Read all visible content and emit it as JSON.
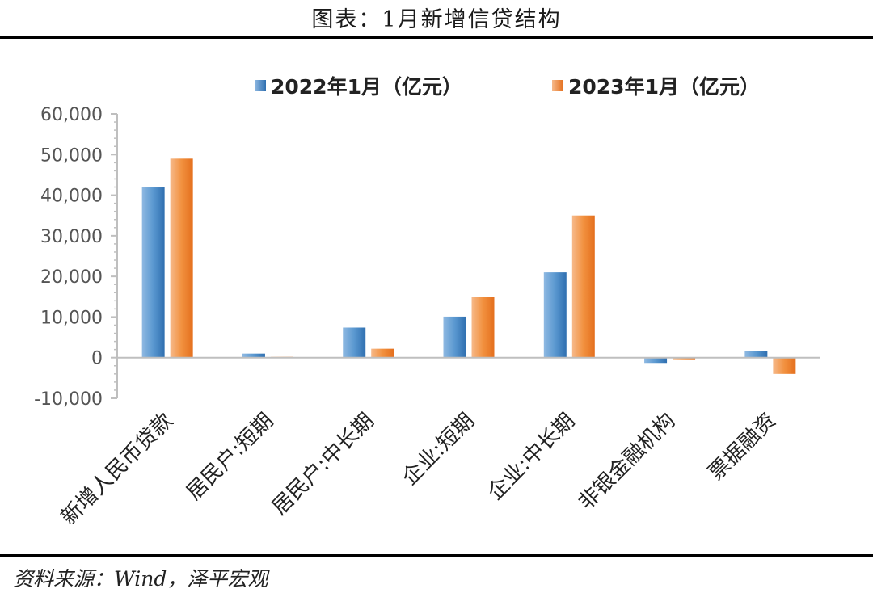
{
  "figure": {
    "title": "图表：1月新增信贷结构",
    "source": "资料来源：Wind，泽平宏观"
  },
  "colors": {
    "series_2022": "#4a8cc8",
    "series_2023": "#f08a3e",
    "axis": "#bfbfbf",
    "text": "#555555"
  },
  "chart_data": {
    "type": "bar",
    "title": "",
    "xlabel": "",
    "ylabel": "",
    "categories": [
      "新增人民币贷款",
      "居民户:短期",
      "居民户:中长期",
      "企业:短期",
      "企业:中长期",
      "非银金融机构",
      "票据融资"
    ],
    "series": [
      {
        "name": "2022年1月（亿元）",
        "values": [
          41900,
          1000,
          7400,
          10100,
          21000,
          -1300,
          1600
        ]
      },
      {
        "name": "2023年1月（亿元）",
        "values": [
          49000,
          200,
          2200,
          15000,
          35000,
          -400,
          -4000
        ]
      }
    ],
    "ylim": [
      -10000,
      60000
    ],
    "yticks": [
      -10000,
      0,
      10000,
      20000,
      30000,
      40000,
      50000,
      60000
    ],
    "ytick_labels": [
      "-10,000",
      "0",
      "10,000",
      "20,000",
      "30,000",
      "40,000",
      "50,000",
      "60,000"
    ],
    "legend_position": "top",
    "grid": false
  }
}
